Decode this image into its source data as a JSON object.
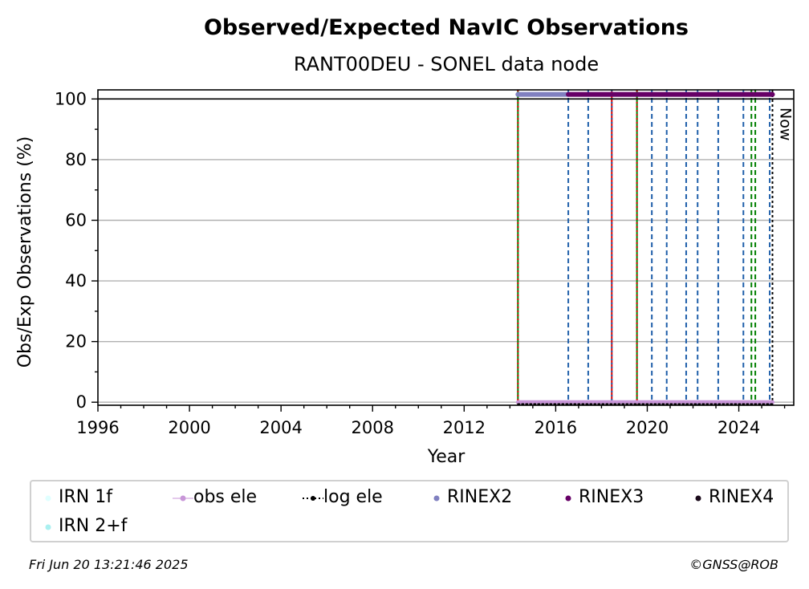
{
  "chart_data": {
    "type": "line",
    "title": "Observed/Expected NavIC Observations",
    "subtitle": "RANT00DEU - SONEL data node",
    "xlabel": "Year",
    "ylabel": "Obs/Exp Observations (%)",
    "xlim": [
      1996,
      2026.4
    ],
    "ylim": [
      -1,
      103
    ],
    "xticks": [
      1996,
      2000,
      2004,
      2008,
      2012,
      2016,
      2020,
      2024
    ],
    "yticks": [
      0,
      20,
      40,
      60,
      80,
      100
    ],
    "grid": "horizontal",
    "now_label": "Now",
    "now_x": 2025.47,
    "series": [
      {
        "name": "IRN 1f",
        "color": "#e0ffff",
        "values": []
      },
      {
        "name": "IRN 2+f",
        "color": "#aaf0f0",
        "values": []
      },
      {
        "name": "obs ele",
        "color": "#c896d8",
        "x": [
          2014.35,
          2025.47
        ],
        "y": [
          0,
          0
        ]
      },
      {
        "name": "log ele",
        "color": "#000000",
        "x": [
          2014.35,
          2025.47
        ],
        "y": [
          -0.6,
          -0.6
        ]
      },
      {
        "name": "RINEX2",
        "color": "#8080c0",
        "x": [
          2014.35,
          2016.55
        ],
        "y": [
          101.5,
          101.5
        ]
      },
      {
        "name": "RINEX3",
        "color": "#660066",
        "x": [
          2016.55,
          2025.47
        ],
        "y": [
          101.5,
          101.5
        ]
      },
      {
        "name": "RINEX4",
        "color": "#1a0a1a",
        "values": []
      }
    ],
    "vertical_markers": [
      {
        "x": 2014.35,
        "color": "#008000",
        "style": "solid"
      },
      {
        "x": 2014.35,
        "color": "#dd0000",
        "style": "dotted"
      },
      {
        "x": 2016.55,
        "color": "#1f5faa",
        "style": "dashed"
      },
      {
        "x": 2017.42,
        "color": "#1f5faa",
        "style": "dashed"
      },
      {
        "x": 2018.45,
        "color": "#dd0000",
        "style": "solid"
      },
      {
        "x": 2018.45,
        "color": "#1f5faa",
        "style": "dotted"
      },
      {
        "x": 2019.55,
        "color": "#008000",
        "style": "solid"
      },
      {
        "x": 2019.55,
        "color": "#dd0000",
        "style": "dotted"
      },
      {
        "x": 2020.2,
        "color": "#1f5faa",
        "style": "dashed"
      },
      {
        "x": 2020.85,
        "color": "#1f5faa",
        "style": "dashed"
      },
      {
        "x": 2021.7,
        "color": "#1f5faa",
        "style": "dashed"
      },
      {
        "x": 2022.2,
        "color": "#1f5faa",
        "style": "dashed"
      },
      {
        "x": 2023.1,
        "color": "#1f5faa",
        "style": "dashed"
      },
      {
        "x": 2024.2,
        "color": "#1f5faa",
        "style": "dashed"
      },
      {
        "x": 2024.55,
        "color": "#008000",
        "style": "dashed"
      },
      {
        "x": 2024.72,
        "color": "#008000",
        "style": "dashed"
      },
      {
        "x": 2025.35,
        "color": "#1f5faa",
        "style": "dashed"
      }
    ],
    "legend": "bottom",
    "legend_columns": 6
  },
  "legend_labels": [
    "IRN 1f",
    "obs ele",
    "log ele",
    "RINEX2",
    "RINEX3",
    "RINEX4",
    "IRN 2+f"
  ],
  "footer": {
    "timestamp": "Fri Jun 20 13:21:46 2025",
    "credit": "©GNSS@ROB"
  }
}
